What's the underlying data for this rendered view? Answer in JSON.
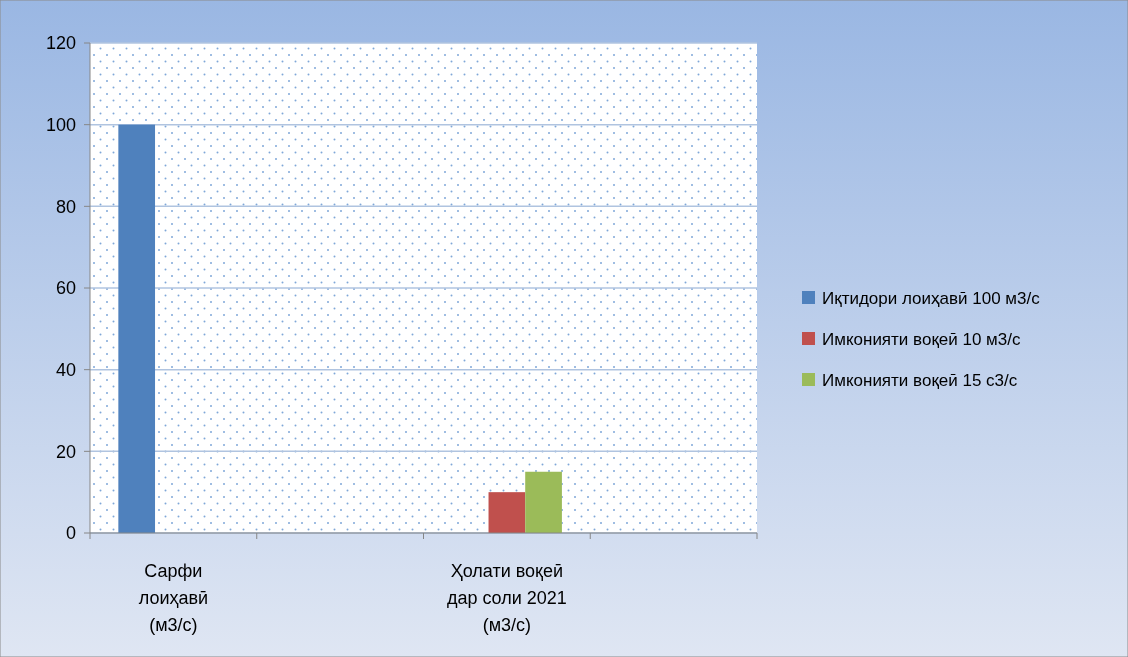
{
  "chart_data": {
    "type": "bar",
    "categories": [
      "Сарфи\nлоиҳавӣ\n(м3/с)",
      null,
      "Ҳолати воқеӣ\nдар соли 2021\n(м3/с)",
      null
    ],
    "series": [
      {
        "name": "Иқтидори лоиҳавӣ 100 м3/с",
        "color": "#4f81bd",
        "values": [
          100,
          null,
          null,
          null
        ]
      },
      {
        "name": "Имконияти воқеӣ 10 м3/с",
        "color": "#c0504d",
        "values": [
          null,
          null,
          10,
          null
        ]
      },
      {
        "name": "Имконияти воқеӣ 15 с3/с",
        "color": "#9bbb59",
        "values": [
          null,
          null,
          15,
          null
        ]
      }
    ],
    "ylim": [
      0,
      120
    ],
    "yticks": [
      0,
      20,
      40,
      60,
      80,
      100,
      120
    ],
    "grid": "y",
    "legend": "right"
  }
}
